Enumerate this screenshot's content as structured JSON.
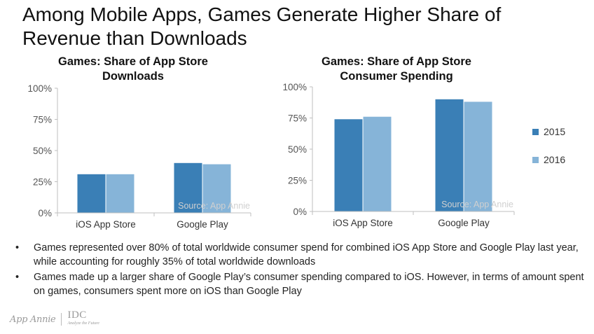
{
  "slide": {
    "title": "Among Mobile Apps, Games Generate Higher Share of Revenue than Downloads"
  },
  "colors": {
    "series_2015": "#3a7fb6",
    "series_2016": "#86b4d8",
    "axis": "#bfbfbf",
    "tick_text": "#555555"
  },
  "legend": {
    "items": [
      {
        "label": "2015",
        "color": "#3a7fb6"
      },
      {
        "label": "2016",
        "color": "#86b4d8"
      }
    ],
    "position": "right"
  },
  "chart_data": [
    {
      "type": "bar",
      "title": "Games: Share of App Store Downloads",
      "title_lines": [
        "Games: Share of App Store",
        "Downloads"
      ],
      "categories": [
        "iOS App Store",
        "Google Play"
      ],
      "series": [
        {
          "name": "2015",
          "values": [
            31,
            40
          ]
        },
        {
          "name": "2016",
          "values": [
            31,
            39
          ]
        }
      ],
      "ylim": [
        0,
        100
      ],
      "yticks": [
        "0%",
        "25%",
        "50%",
        "75%",
        "100%"
      ],
      "source": "Source: App Annie",
      "grid": false
    },
    {
      "type": "bar",
      "title": "Games: Share of App Store Consumer Spending",
      "title_lines": [
        "Games: Share of App Store",
        "Consumer Spending"
      ],
      "categories": [
        "iOS App Store",
        "Google Play"
      ],
      "series": [
        {
          "name": "2015",
          "values": [
            74,
            90
          ]
        },
        {
          "name": "2016",
          "values": [
            76,
            88
          ]
        }
      ],
      "ylim": [
        0,
        100
      ],
      "yticks": [
        "0%",
        "25%",
        "50%",
        "75%",
        "100%"
      ],
      "source": "Source: App Annie",
      "grid": false
    }
  ],
  "bullets": [
    "Games represented over 80% of total worldwide consumer spend for combined iOS App Store and Google Play last year, while accounting for roughly 35% of total worldwide downloads",
    "Games made up a larger share of Google Play’s consumer spending compared to iOS. However, in terms of amount spent on games, consumers spent more on iOS than Google Play"
  ],
  "bullet_symbol": "•",
  "footer": {
    "logo_appannie": "App Annie",
    "logo_idc": "IDC",
    "logo_idc_tagline": "Analyze the Future"
  }
}
